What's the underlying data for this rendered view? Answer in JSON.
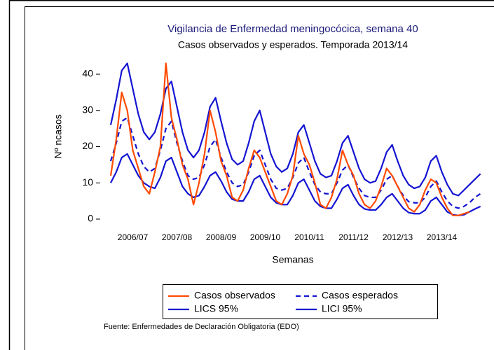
{
  "chart_data": {
    "type": "line",
    "title": "Vigilancia de Enfermedad meningocócica, semana 40",
    "subtitle": "Casos observados y esperados. Temporada 2013/14",
    "y_label": "Nº ncasos",
    "x_label": "Semanas",
    "note": "Fuente: Enfermedades de Declaración Obligatoria (EDO)",
    "legend": "bottom",
    "xlim": [
      -0.2,
      8.65
    ],
    "xticks": [
      {
        "value": 0.5,
        "label": "2006/07"
      },
      {
        "value": 1.5,
        "label": "2007/08"
      },
      {
        "value": 2.5,
        "label": "2008/09"
      },
      {
        "value": 3.5,
        "label": "2009/10"
      },
      {
        "value": 4.5,
        "label": "2010/11"
      },
      {
        "value": 5.5,
        "label": "2011/12"
      },
      {
        "value": 6.5,
        "label": "2012/13"
      },
      {
        "value": 7.5,
        "label": "2013/14"
      }
    ],
    "ylim": [
      -2,
      45
    ],
    "yticks": [
      0,
      10,
      20,
      30,
      40
    ],
    "x": [
      0,
      0.125,
      0.25,
      0.375,
      0.5,
      0.625,
      0.75,
      0.875,
      1,
      1.125,
      1.25,
      1.375,
      1.5,
      1.625,
      1.75,
      1.875,
      2,
      2.125,
      2.25,
      2.375,
      2.5,
      2.625,
      2.75,
      2.875,
      3,
      3.125,
      3.25,
      3.375,
      3.5,
      3.625,
      3.75,
      3.875,
      4,
      4.125,
      4.25,
      4.375,
      4.5,
      4.625,
      4.75,
      4.875,
      5,
      5.125,
      5.25,
      5.375,
      5.5,
      5.625,
      5.75,
      5.875,
      6,
      6.125,
      6.25,
      6.375,
      6.5,
      6.625,
      6.75,
      6.875,
      7,
      7.125,
      7.25,
      7.375,
      7.5,
      7.625,
      7.75,
      7.875,
      8,
      8.125,
      8.25,
      8.375
    ],
    "series": [
      {
        "name": "Casos observados",
        "color": "#ff4a00",
        "dash": false,
        "values": [
          12,
          22,
          35,
          30,
          19,
          14,
          9,
          7,
          13,
          20,
          43,
          28,
          22,
          15,
          11,
          4,
          10,
          18,
          30,
          24,
          16,
          12,
          6,
          5,
          8,
          14,
          19,
          17,
          13,
          9,
          5,
          4,
          7,
          12,
          23,
          18,
          15,
          10,
          4,
          3,
          6,
          11,
          19,
          15,
          12,
          7,
          4,
          3,
          5,
          9,
          14,
          12,
          9,
          6,
          3,
          2,
          4,
          8,
          11,
          10,
          6,
          3,
          1,
          1,
          1.5,
          2,
          null,
          null
        ]
      },
      {
        "name": "Casos esperados",
        "color": "#1414d2",
        "dash": true,
        "values": [
          16,
          21,
          27,
          28,
          23,
          18,
          14.5,
          13,
          14,
          19,
          25,
          27,
          21,
          16,
          12,
          11,
          11.5,
          15,
          20,
          22,
          17,
          13,
          10,
          9,
          9.5,
          13,
          17.5,
          19,
          15,
          11,
          8.5,
          8,
          8.5,
          11.5,
          15.5,
          17,
          13,
          9.5,
          7.5,
          7,
          7,
          10,
          13.5,
          15,
          11.5,
          8.5,
          6.5,
          6,
          6,
          8,
          11,
          12,
          9,
          6.5,
          4.8,
          4.5,
          4.5,
          6,
          9,
          10.5,
          7.5,
          5,
          3.5,
          3,
          3.5,
          4.5,
          6,
          7
        ]
      },
      {
        "name": "LICS 95%",
        "color": "#1414d2",
        "dash": false,
        "values": [
          26,
          33,
          41,
          43,
          36,
          29,
          24,
          22,
          24,
          29,
          36,
          38,
          31,
          24,
          19,
          17,
          19,
          24,
          31,
          33.5,
          27,
          21,
          16.5,
          15,
          16,
          21,
          27,
          30,
          24,
          18,
          14.5,
          13,
          14,
          18,
          24,
          26,
          21,
          16,
          12.5,
          11.5,
          12,
          16,
          21,
          23,
          18.5,
          14,
          11,
          10,
          10.5,
          14,
          18.5,
          20.5,
          16,
          12,
          9.5,
          8.5,
          9,
          11.5,
          16,
          17.5,
          13,
          9.5,
          7,
          6.5,
          8,
          9.5,
          11,
          12.5
        ]
      },
      {
        "name": "LICI 95%",
        "color": "#1414d2",
        "dash": false,
        "values": [
          10,
          13,
          17,
          18,
          15,
          12,
          10,
          9,
          8.5,
          11.5,
          16,
          17,
          13,
          9,
          7,
          6,
          6.5,
          9,
          12,
          13,
          10.5,
          7.5,
          5.5,
          5,
          5,
          7.5,
          11,
          12,
          9,
          6,
          4.5,
          4,
          4,
          6.5,
          10,
          11,
          8,
          5,
          3.5,
          3,
          3,
          5.5,
          8.5,
          9.5,
          6.5,
          4,
          2.8,
          2.5,
          2.5,
          4,
          6,
          7,
          5,
          3,
          1.8,
          1.5,
          1.5,
          2.5,
          5,
          6,
          4,
          2,
          1.2,
          1,
          1.2,
          2,
          2.8,
          3.5
        ]
      }
    ]
  }
}
